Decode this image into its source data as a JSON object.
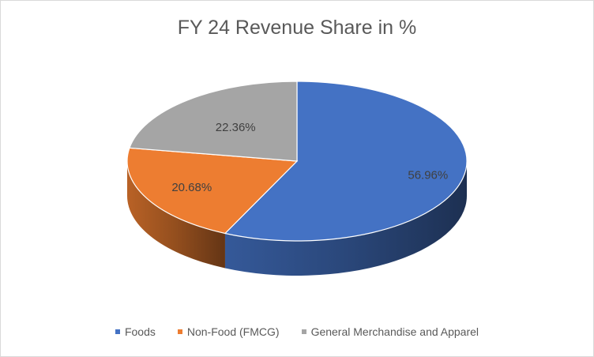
{
  "chart_data": {
    "type": "pie",
    "title": "FY 24 Revenue Share in %",
    "categories": [
      "Foods",
      "Non-Food (FMCG)",
      "General Merchandise and Apparel"
    ],
    "values": [
      56.96,
      20.68,
      22.36
    ],
    "data_labels": [
      "56.96%",
      "20.68%",
      "22.36%"
    ],
    "colors": [
      "#4472c4",
      "#ed7d31",
      "#a5a5a5"
    ],
    "legend_position": "bottom",
    "style": "3d"
  }
}
